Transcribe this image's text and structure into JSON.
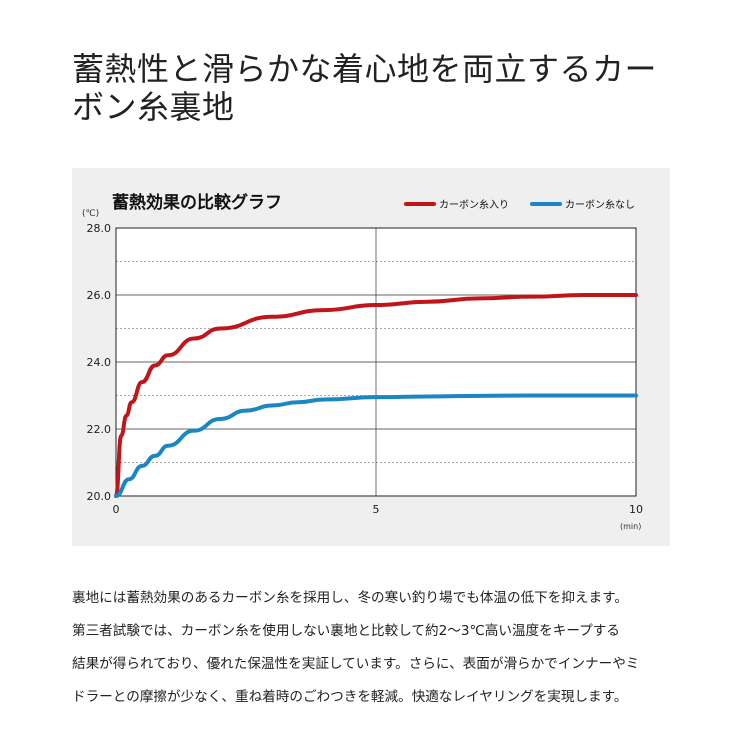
{
  "heading": {
    "line1": "蓄熱性と滑らかな着心地を両立するカー",
    "line2": "ボン糸裏地"
  },
  "chart_data": {
    "type": "line",
    "title": "蓄熱効果の比較グラフ",
    "ylabel": "(℃)",
    "xlabel": "(min)",
    "xlim": [
      0,
      10
    ],
    "ylim": [
      20,
      28
    ],
    "x_ticks": [
      "0",
      "5",
      "10"
    ],
    "y_ticks": [
      "20.0",
      "22.0",
      "24.0",
      "26.0",
      "28.0"
    ],
    "grid": true,
    "legend_position": "top-right",
    "series": [
      {
        "name": "カーボン糸入り",
        "color": "#c0151b",
        "x": [
          0,
          0.1,
          0.2,
          0.3,
          0.5,
          0.75,
          1,
          1.5,
          2,
          3,
          4,
          5,
          6,
          7,
          8,
          9,
          10
        ],
        "values": [
          20.0,
          21.8,
          22.4,
          22.8,
          23.4,
          23.9,
          24.2,
          24.7,
          25.0,
          25.35,
          25.55,
          25.7,
          25.8,
          25.9,
          25.95,
          26.0,
          26.0
        ]
      },
      {
        "name": "カーボン糸なし",
        "color": "#1b86c2",
        "x": [
          0,
          0.25,
          0.5,
          0.75,
          1,
          1.5,
          2,
          2.5,
          3,
          3.5,
          4,
          5,
          6,
          7,
          8,
          9,
          10
        ],
        "values": [
          20.0,
          20.5,
          20.9,
          21.2,
          21.5,
          21.95,
          22.3,
          22.55,
          22.7,
          22.8,
          22.88,
          22.95,
          22.97,
          22.99,
          23.0,
          23.0,
          23.0
        ]
      }
    ]
  },
  "body": {
    "line1": "裏地には蓄熱効果のあるカーボン糸を採用し、冬の寒い釣り場でも体温の低下を抑えます。",
    "line2": "第三者試験では、カーボン糸を使用しない裏地と比較して約2〜3℃高い温度をキープする",
    "line3": "結果が得られており、優れた保温性を実証しています。さらに、表面が滑らかでインナーやミ",
    "line4": "ドラーとの摩擦が少なく、重ね着時のごわつきを軽減。快適なレイヤリングを実現します。"
  }
}
